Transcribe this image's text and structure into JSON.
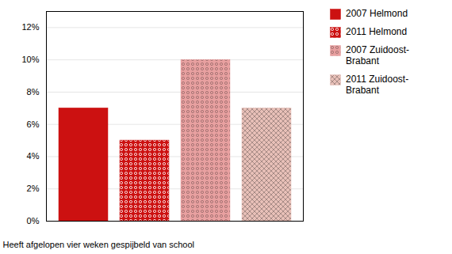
{
  "chart_data": {
    "type": "bar",
    "xlabel": "Heeft afgelopen vier weken gespijbeld van school",
    "categories": [
      null
    ],
    "series": [
      {
        "name": "2007 Helmond",
        "color": "#CC1111",
        "values": [
          0.07
        ]
      },
      {
        "name": "2011 Helmond",
        "color": "#CC1111",
        "values": [
          0.05
        ]
      },
      {
        "name": "2007 Zuidoost-\nBrabant",
        "color": "#E8A0A0",
        "values": [
          0.1
        ]
      },
      {
        "name": "2011 Zuidoost-\nBrabant",
        "color": "#E8C0B8",
        "values": [
          0.07
        ]
      }
    ],
    "ylim": [
      0,
      0.13
    ],
    "yticks": [
      {
        "value": 0,
        "label": "0%"
      },
      {
        "value": 0.02,
        "label": "2%"
      },
      {
        "value": 0.04,
        "label": "4%"
      },
      {
        "value": 0.06,
        "label": "6%"
      },
      {
        "value": 0.08,
        "label": "8%"
      },
      {
        "value": 0.1,
        "label": "10%"
      },
      {
        "value": 0.12,
        "label": "12%"
      }
    ],
    "grid": true,
    "legend": "right"
  }
}
